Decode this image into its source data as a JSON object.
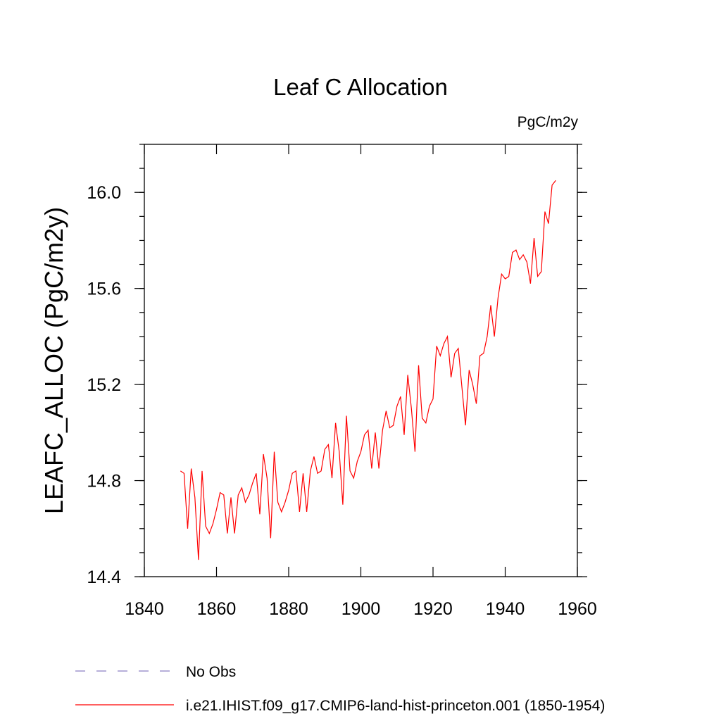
{
  "chart_data": {
    "type": "line",
    "title": "Leaf C Allocation",
    "units": "PgC/m2y",
    "ylabel": "LEAFC_ALLOC  (PgC/m2y)",
    "xlabel": "",
    "xlim": [
      1840,
      1960
    ],
    "ylim": [
      14.4,
      16.2
    ],
    "xticks": [
      1840,
      1860,
      1880,
      1900,
      1920,
      1940,
      1960
    ],
    "yticks": [
      14.4,
      14.8,
      15.2,
      15.6,
      16.0
    ],
    "ytick_labels": [
      "14.4",
      "14.8",
      "15.2",
      "15.6",
      "16.0"
    ],
    "grid": false,
    "series": [
      {
        "name": "i.e21.IHIST.f09_g17.CMIP6-land-hist-princeton.001 (1850-1954)",
        "color": "#ff0000",
        "x": [
          1850,
          1851,
          1852,
          1853,
          1854,
          1855,
          1856,
          1857,
          1858,
          1859,
          1860,
          1861,
          1862,
          1863,
          1864,
          1865,
          1866,
          1867,
          1868,
          1869,
          1870,
          1871,
          1872,
          1873,
          1874,
          1875,
          1876,
          1877,
          1878,
          1879,
          1880,
          1881,
          1882,
          1883,
          1884,
          1885,
          1886,
          1887,
          1888,
          1889,
          1890,
          1891,
          1892,
          1893,
          1894,
          1895,
          1896,
          1897,
          1898,
          1899,
          1900,
          1901,
          1902,
          1903,
          1904,
          1905,
          1906,
          1907,
          1908,
          1909,
          1910,
          1911,
          1912,
          1913,
          1914,
          1915,
          1916,
          1917,
          1918,
          1919,
          1920,
          1921,
          1922,
          1923,
          1924,
          1925,
          1926,
          1927,
          1928,
          1929,
          1930,
          1931,
          1932,
          1933,
          1934,
          1935,
          1936,
          1937,
          1938,
          1939,
          1940,
          1941,
          1942,
          1943,
          1944,
          1945,
          1946,
          1947,
          1948,
          1949,
          1950,
          1951,
          1952,
          1953,
          1954
        ],
        "values": [
          14.84,
          14.83,
          14.6,
          14.85,
          14.73,
          14.47,
          14.84,
          14.61,
          14.58,
          14.62,
          14.68,
          14.75,
          14.74,
          14.58,
          14.73,
          14.58,
          14.74,
          14.77,
          14.71,
          14.74,
          14.79,
          14.83,
          14.66,
          14.91,
          14.81,
          14.56,
          14.92,
          14.71,
          14.67,
          14.71,
          14.76,
          14.83,
          14.84,
          14.67,
          14.83,
          14.67,
          14.84,
          14.9,
          14.83,
          14.84,
          14.93,
          14.95,
          14.81,
          15.04,
          14.92,
          14.7,
          15.07,
          14.84,
          14.81,
          14.88,
          14.92,
          14.99,
          15.01,
          14.85,
          15.0,
          14.85,
          15.01,
          15.09,
          15.02,
          15.03,
          15.11,
          15.15,
          14.99,
          15.24,
          15.1,
          14.92,
          15.28,
          15.06,
          15.04,
          15.11,
          15.14,
          15.36,
          15.32,
          15.37,
          15.4,
          15.23,
          15.33,
          15.35,
          15.19,
          15.03,
          15.26,
          15.2,
          15.12,
          15.32,
          15.33,
          15.4,
          15.53,
          15.4,
          15.56,
          15.66,
          15.64,
          15.65,
          15.75,
          15.76,
          15.72,
          15.74,
          15.71,
          15.62,
          15.81,
          15.65,
          15.67,
          15.92,
          15.87,
          16.03,
          16.05
        ]
      }
    ],
    "legend": {
      "placement": "bottom",
      "entries": [
        {
          "label": "No Obs",
          "color": "#8c7fc4",
          "style": "dashed"
        },
        {
          "label": "i.e21.IHIST.f09_g17.CMIP6-land-hist-princeton.001 (1850-1954)",
          "color": "#ff0000",
          "style": "solid"
        }
      ]
    }
  }
}
